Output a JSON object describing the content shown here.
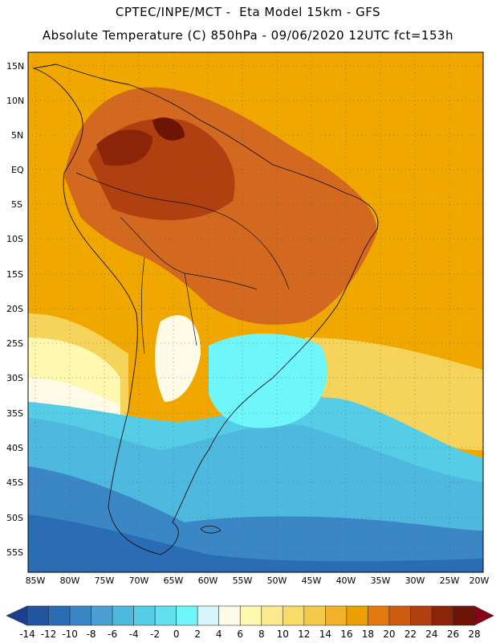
{
  "header": {
    "line1": "CPTEC/INPE/MCT -  Eta Model 15km - GFS",
    "line2": "Absolute Temperature (C) 850hPa - 09/06/2020 12UTC fct=153h"
  },
  "map": {
    "lat_labels": [
      "15N",
      "10N",
      "5N",
      "EQ",
      "5S",
      "10S",
      "15S",
      "20S",
      "25S",
      "30S",
      "35S",
      "40S",
      "45S",
      "50S",
      "55S"
    ],
    "lon_labels": [
      "85W",
      "80W",
      "75W",
      "70W",
      "65W",
      "60W",
      "55W",
      "50W",
      "45W",
      "40W",
      "35W",
      "30W",
      "25W",
      "20W"
    ],
    "ocean_color": "#f0a800"
  },
  "colorbar": {
    "labels": [
      "-14",
      "-12",
      "-10",
      "-8",
      "-6",
      "-4",
      "-2",
      "0",
      "2",
      "4",
      "6",
      "8",
      "10",
      "12",
      "14",
      "16",
      "18",
      "20",
      "22",
      "24",
      "26",
      "28"
    ],
    "colors": [
      "#1a3f8f",
      "#2255a0",
      "#2a6db4",
      "#3b86c4",
      "#4aa0d2",
      "#4fb8df",
      "#55cde6",
      "#62e0ef",
      "#6ff6fb",
      "#d6f6fb",
      "#fffbe6",
      "#fff8b0",
      "#fbe990",
      "#f8dc6a",
      "#f5c94a",
      "#f1b22a",
      "#eaa000",
      "#e27a10",
      "#cc5c10",
      "#b04010",
      "#8c2408",
      "#6e1404",
      "#860018"
    ]
  }
}
